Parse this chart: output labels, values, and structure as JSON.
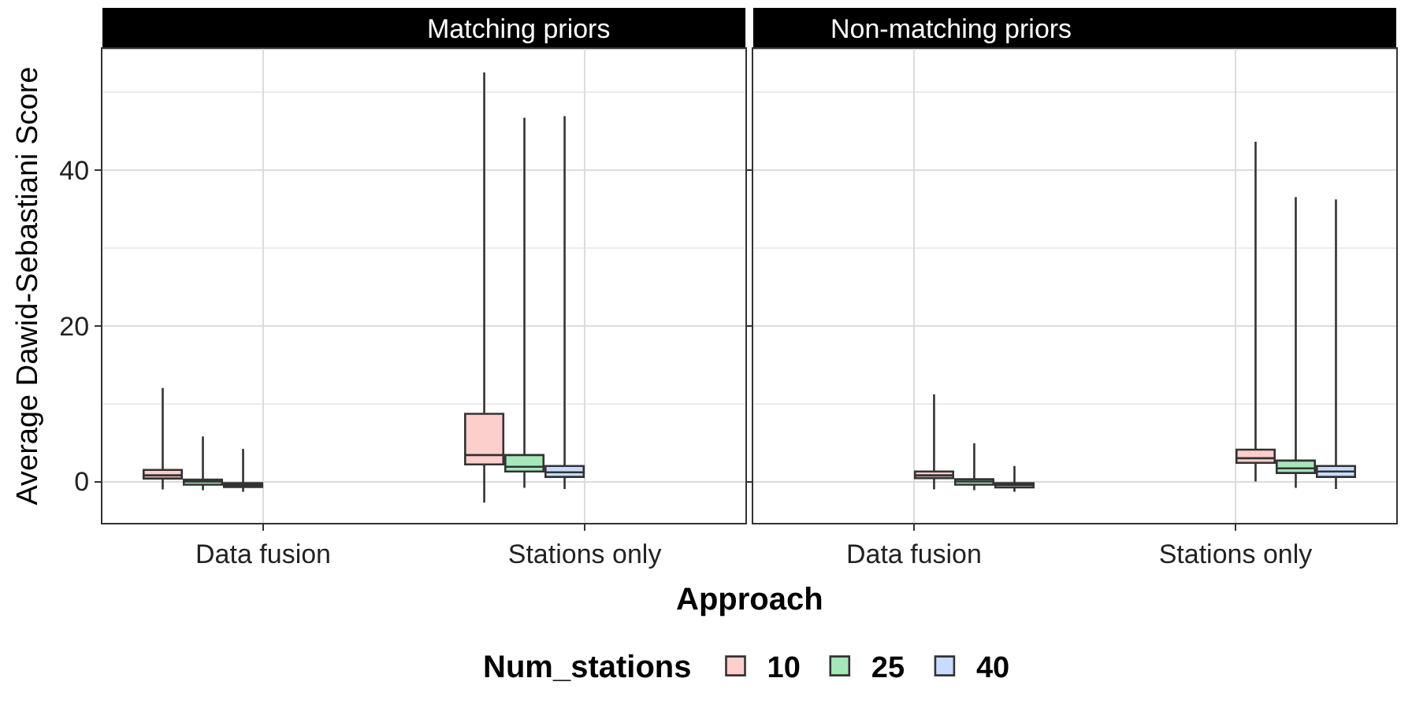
{
  "chart_data": [
    {
      "type": "box",
      "title": "Matching priors",
      "xlabel": "Approach",
      "ylabel": "Average Dawid-Sebastiani Score",
      "legend_title": "Num_stations",
      "legend": "bottom",
      "grid": true,
      "categories": [
        "Data fusion",
        "Stations only"
      ],
      "ylim": [
        -5.3,
        55.5
      ],
      "yticks": [
        0,
        {
          "value": 10,
          "label": null
        },
        20,
        {
          "value": 30,
          "label": null
        },
        40,
        {
          "value": 50,
          "label": null
        }
      ],
      "series": [
        {
          "name": "10",
          "color": "#f8766d",
          "boxes": [
            {
              "low": -1,
              "q1": 0.4,
              "median": 0.8,
              "q3": 1.5,
              "high": 12
            },
            {
              "low": -2.7,
              "q1": 2.2,
              "median": 3.4,
              "q3": 8.7,
              "high": 52.5
            }
          ]
        },
        {
          "name": "25",
          "color": "#00ba38",
          "boxes": [
            {
              "low": -1.1,
              "q1": -0.4,
              "median": 0,
              "q3": 0.25,
              "high": 5.8
            },
            {
              "low": -0.8,
              "q1": 1.3,
              "median": 1.9,
              "q3": 3.4,
              "high": 46.7
            }
          ]
        },
        {
          "name": "40",
          "color": "#619cff",
          "boxes": [
            {
              "low": -1.3,
              "q1": -0.7,
              "median": -0.45,
              "q3": -0.2,
              "high": 4.2
            },
            {
              "low": -0.95,
              "q1": 0.6,
              "median": 1.2,
              "q3": 2,
              "high": 46.9
            }
          ]
        }
      ]
    },
    {
      "type": "box",
      "title": "Non-matching priors",
      "grid": true,
      "tick_labels": "x",
      "categories": [
        "Data fusion",
        "Stations only"
      ],
      "ylim": [
        -5.3,
        55.5
      ],
      "yticks": [
        0,
        {
          "value": 10,
          "label": null
        },
        20,
        {
          "value": 30,
          "label": null
        },
        40,
        {
          "value": 50,
          "label": null
        }
      ],
      "series": [
        {
          "name": "10",
          "color": "#f8766d",
          "boxes": [
            {
              "low": -1,
              "q1": 0.45,
              "median": 0.8,
              "q3": 1.3,
              "high": 11.2
            },
            {
              "low": 0,
              "q1": 2.4,
              "median": 3,
              "q3": 4.1,
              "high": 43.6
            }
          ]
        },
        {
          "name": "25",
          "color": "#00ba38",
          "boxes": [
            {
              "low": -1.1,
              "q1": -0.4,
              "median": 0,
              "q3": 0.3,
              "high": 4.9
            },
            {
              "low": -0.8,
              "q1": 1.1,
              "median": 1.7,
              "q3": 2.7,
              "high": 36.5
            }
          ]
        },
        {
          "name": "40",
          "color": "#619cff",
          "boxes": [
            {
              "low": -1.3,
              "q1": -0.75,
              "median": -0.45,
              "q3": -0.2,
              "high": 2
            },
            {
              "low": -0.95,
              "q1": 0.6,
              "median": 1.3,
              "q3": 2,
              "high": 36.2
            }
          ]
        }
      ]
    }
  ]
}
